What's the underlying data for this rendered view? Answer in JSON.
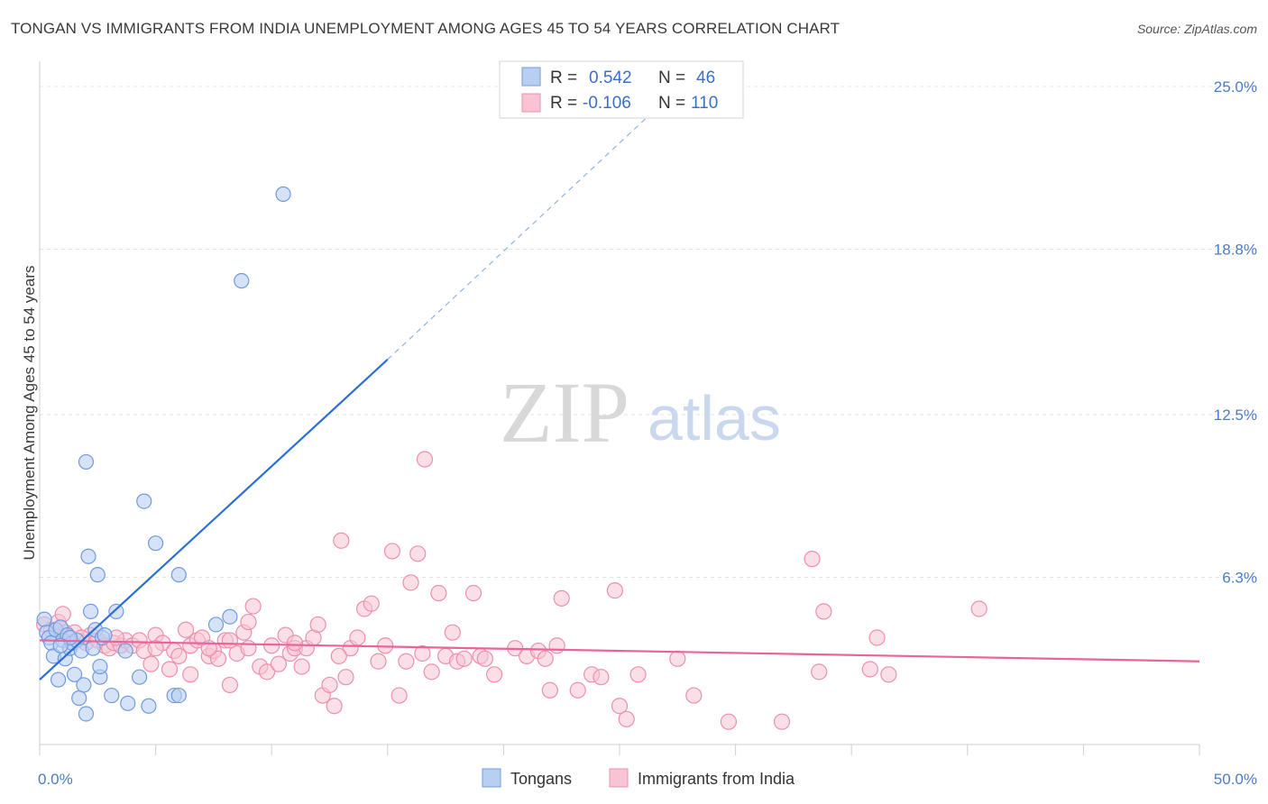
{
  "title": "TONGAN VS IMMIGRANTS FROM INDIA UNEMPLOYMENT AMONG AGES 45 TO 54 YEARS CORRELATION CHART",
  "source": "Source: ZipAtlas.com",
  "watermark": {
    "zip": "ZIP",
    "atlas": "atlas"
  },
  "colors": {
    "tongans_fill": "#b9cff2",
    "tongans_stroke": "#6f9be0",
    "tongans_line": "#2b6fd6",
    "india_fill": "#f8c4d4",
    "india_stroke": "#ee8fad",
    "india_line": "#e8649a",
    "grid": "#e3e3e3",
    "axis_text": "#4a7cc9"
  },
  "legend": {
    "rows": [
      {
        "r_label": "R =",
        "r_value": "0.542",
        "n_label": "N =",
        "n_value": "46"
      },
      {
        "r_label": "R =",
        "r_value": "-0.106",
        "n_label": "N =",
        "n_value": "110"
      }
    ]
  },
  "chart_data": {
    "type": "scatter",
    "title": "TONGAN VS IMMIGRANTS FROM INDIA UNEMPLOYMENT AMONG AGES 45 TO 54 YEARS CORRELATION CHART",
    "xlabel": "",
    "ylabel": "Unemployment Among Ages 45 to 54 years",
    "xlim": [
      0,
      50
    ],
    "ylim": [
      0,
      27
    ],
    "x_tick_labels": [
      "0.0%",
      "50.0%"
    ],
    "y_ticks": [
      6.3,
      12.5,
      18.8,
      25.0
    ],
    "y_tick_labels": [
      "6.3%",
      "12.5%",
      "18.8%",
      "25.0%"
    ],
    "grid": true,
    "legend_position": "bottom",
    "series": [
      {
        "name": "Tongans",
        "points": [
          [
            0.2,
            4.7
          ],
          [
            0.3,
            4.2
          ],
          [
            0.4,
            4.0
          ],
          [
            0.5,
            3.8
          ],
          [
            0.6,
            3.3
          ],
          [
            0.7,
            4.3
          ],
          [
            0.8,
            2.4
          ],
          [
            0.9,
            4.4
          ],
          [
            1.0,
            3.9
          ],
          [
            1.1,
            3.2
          ],
          [
            1.2,
            4.1
          ],
          [
            1.3,
            3.6
          ],
          [
            1.4,
            3.8
          ],
          [
            1.5,
            2.6
          ],
          [
            1.6,
            3.9
          ],
          [
            1.7,
            1.7
          ],
          [
            1.8,
            3.5
          ],
          [
            1.9,
            2.2
          ],
          [
            2.0,
            1.1
          ],
          [
            2.0,
            10.7
          ],
          [
            2.1,
            7.1
          ],
          [
            2.2,
            5.0
          ],
          [
            2.3,
            3.6
          ],
          [
            2.4,
            4.3
          ],
          [
            2.5,
            6.4
          ],
          [
            2.6,
            2.5
          ],
          [
            2.6,
            2.9
          ],
          [
            2.7,
            4.0
          ],
          [
            2.8,
            4.1
          ],
          [
            3.1,
            1.8
          ],
          [
            3.3,
            5.0
          ],
          [
            3.7,
            3.5
          ],
          [
            3.8,
            1.5
          ],
          [
            4.3,
            2.5
          ],
          [
            4.5,
            9.2
          ],
          [
            4.7,
            1.4
          ],
          [
            5.0,
            7.6
          ],
          [
            5.8,
            1.8
          ],
          [
            6.0,
            1.8
          ],
          [
            6.0,
            6.4
          ],
          [
            7.6,
            4.5
          ],
          [
            8.2,
            4.8
          ],
          [
            8.7,
            17.6
          ],
          [
            10.5,
            20.9
          ],
          [
            1.3,
            4.0
          ],
          [
            0.9,
            3.7
          ]
        ],
        "trend": {
          "x0": 0,
          "y0": 2.4,
          "x1": 15.0,
          "y1": 14.6,
          "dash_to_x": 27.0,
          "dash_to_y": 24.5
        }
      },
      {
        "name": "Immigrants from India",
        "points": [
          [
            0.2,
            4.5
          ],
          [
            0.5,
            4.3
          ],
          [
            0.8,
            4.6
          ],
          [
            1.0,
            4.9
          ],
          [
            1.1,
            4.2
          ],
          [
            1.3,
            4.0
          ],
          [
            1.5,
            4.2
          ],
          [
            2.0,
            3.8
          ],
          [
            2.2,
            4.1
          ],
          [
            2.5,
            3.9
          ],
          [
            2.8,
            3.7
          ],
          [
            3.0,
            3.6
          ],
          [
            3.2,
            3.8
          ],
          [
            3.5,
            3.7
          ],
          [
            3.7,
            3.9
          ],
          [
            4.0,
            3.7
          ],
          [
            4.3,
            3.9
          ],
          [
            4.5,
            3.5
          ],
          [
            4.8,
            3.0
          ],
          [
            5.0,
            4.1
          ],
          [
            5.3,
            3.8
          ],
          [
            5.6,
            2.8
          ],
          [
            5.8,
            3.5
          ],
          [
            6.0,
            3.3
          ],
          [
            6.3,
            4.3
          ],
          [
            6.5,
            3.7
          ],
          [
            6.8,
            3.9
          ],
          [
            7.0,
            4.0
          ],
          [
            7.3,
            3.3
          ],
          [
            7.5,
            3.5
          ],
          [
            7.7,
            3.2
          ],
          [
            8.0,
            3.9
          ],
          [
            8.2,
            2.2
          ],
          [
            8.5,
            3.4
          ],
          [
            8.8,
            4.2
          ],
          [
            9.0,
            4.6
          ],
          [
            9.2,
            5.2
          ],
          [
            9.5,
            2.9
          ],
          [
            9.8,
            2.7
          ],
          [
            10.0,
            3.7
          ],
          [
            10.3,
            3.0
          ],
          [
            10.6,
            4.1
          ],
          [
            10.8,
            3.4
          ],
          [
            11.0,
            3.6
          ],
          [
            11.3,
            2.9
          ],
          [
            11.5,
            3.6
          ],
          [
            11.8,
            4.0
          ],
          [
            12.0,
            4.5
          ],
          [
            12.2,
            1.8
          ],
          [
            12.5,
            2.2
          ],
          [
            12.7,
            1.4
          ],
          [
            13.0,
            7.7
          ],
          [
            13.2,
            2.5
          ],
          [
            13.4,
            3.6
          ],
          [
            13.7,
            4.0
          ],
          [
            14.0,
            5.1
          ],
          [
            14.3,
            5.3
          ],
          [
            14.6,
            3.1
          ],
          [
            14.9,
            3.7
          ],
          [
            15.2,
            7.3
          ],
          [
            15.5,
            1.8
          ],
          [
            15.8,
            3.1
          ],
          [
            16.0,
            6.1
          ],
          [
            16.3,
            7.2
          ],
          [
            16.6,
            10.8
          ],
          [
            16.9,
            2.7
          ],
          [
            17.2,
            5.7
          ],
          [
            17.5,
            3.3
          ],
          [
            17.8,
            4.2
          ],
          [
            18.0,
            3.1
          ],
          [
            18.3,
            3.2
          ],
          [
            18.7,
            5.7
          ],
          [
            19.0,
            3.3
          ],
          [
            19.2,
            3.2
          ],
          [
            19.6,
            2.6
          ],
          [
            20.5,
            3.6
          ],
          [
            21.0,
            3.3
          ],
          [
            21.5,
            3.5
          ],
          [
            21.8,
            3.2
          ],
          [
            22.3,
            3.7
          ],
          [
            22.0,
            2.0
          ],
          [
            22.5,
            5.5
          ],
          [
            23.2,
            2.0
          ],
          [
            23.8,
            2.6
          ],
          [
            24.2,
            2.5
          ],
          [
            24.8,
            5.8
          ],
          [
            25.0,
            1.4
          ],
          [
            25.3,
            0.9
          ],
          [
            25.8,
            2.6
          ],
          [
            27.5,
            3.2
          ],
          [
            28.2,
            1.8
          ],
          [
            29.7,
            0.8
          ],
          [
            32.0,
            0.8
          ],
          [
            33.3,
            7.0
          ],
          [
            33.6,
            2.7
          ],
          [
            33.8,
            5.0
          ],
          [
            35.8,
            2.8
          ],
          [
            36.1,
            4.0
          ],
          [
            36.6,
            2.6
          ],
          [
            40.5,
            5.1
          ],
          [
            16.5,
            3.4
          ],
          [
            12.9,
            3.3
          ],
          [
            6.5,
            2.6
          ],
          [
            9.0,
            3.6
          ],
          [
            3.3,
            4.0
          ],
          [
            5.0,
            3.6
          ],
          [
            7.3,
            3.6
          ],
          [
            8.2,
            3.9
          ],
          [
            11.0,
            3.8
          ],
          [
            1.8,
            4.0
          ]
        ],
        "trend": {
          "x0": 0,
          "y0": 3.9,
          "x1": 50,
          "y1": 3.1
        }
      }
    ]
  },
  "axis": {
    "ylabel": "Unemployment Among Ages 45 to 54 years",
    "x_left": "0.0%",
    "x_right": "50.0%"
  },
  "bottom_legend": {
    "tongans": "Tongans",
    "india": "Immigrants from India"
  }
}
